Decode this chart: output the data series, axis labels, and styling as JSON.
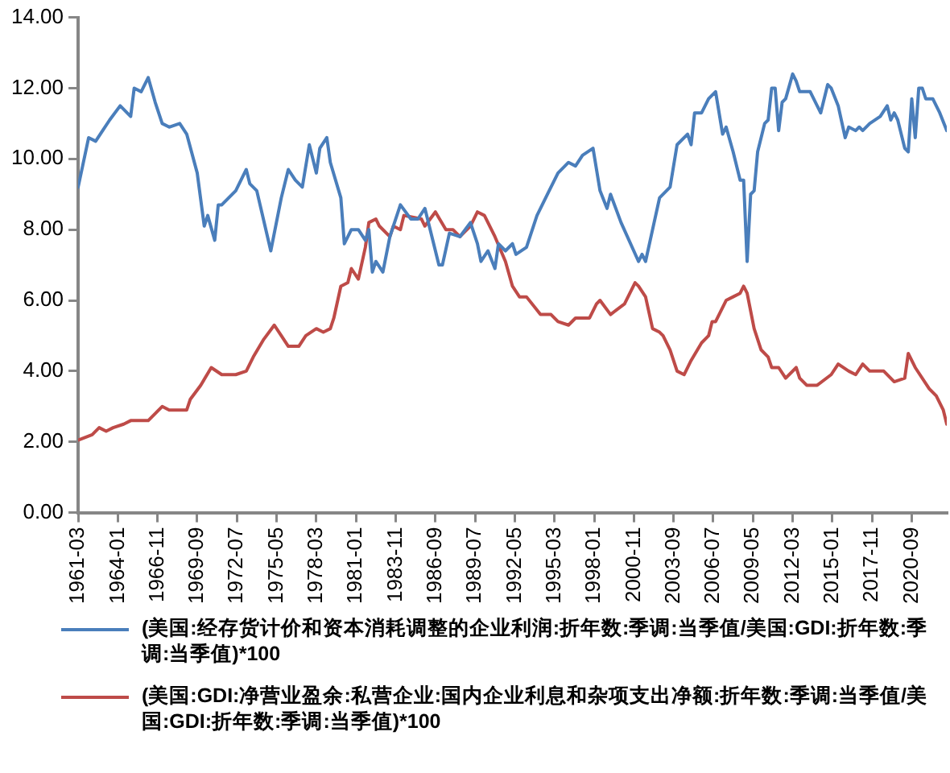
{
  "chart_data": {
    "type": "line",
    "xlim": [
      "1961-03",
      "2023-03"
    ],
    "xticks": [
      "1961-03",
      "1964-01",
      "1966-11",
      "1969-09",
      "1972-07",
      "1975-05",
      "1978-03",
      "1981-01",
      "1983-11",
      "1986-09",
      "1989-07",
      "1992-05",
      "1995-03",
      "1998-01",
      "2000-11",
      "2003-09",
      "2006-07",
      "2009-05",
      "2012-03",
      "2015-01",
      "2017-11",
      "2020-09"
    ],
    "ylim": [
      0,
      14
    ],
    "yticks": [
      {
        "value": 0,
        "label": "0.00"
      },
      {
        "value": 2,
        "label": "2.00"
      },
      {
        "value": 4,
        "label": "4.00"
      },
      {
        "value": 6,
        "label": "6.00"
      },
      {
        "value": 8,
        "label": "8.00"
      },
      {
        "value": 10,
        "label": "10.00"
      },
      {
        "value": 12,
        "label": "12.00"
      },
      {
        "value": 14,
        "label": "14.00"
      }
    ],
    "grid": false,
    "legend": "bottom",
    "marker": "none",
    "line_style": "solid",
    "series": [
      {
        "name": "(美国:经存货计价和资本消耗调整的企业利润:折年数:季调:当季值/美国:GDI:折年数:季调:当季值)*100",
        "color": "#4a7ebb",
        "x": [
          "1961-03",
          "1961-12",
          "1962-06",
          "1962-12",
          "1963-06",
          "1964-03",
          "1964-12",
          "1965-03",
          "1965-09",
          "1966-03",
          "1966-09",
          "1967-03",
          "1967-09",
          "1968-06",
          "1968-12",
          "1969-09",
          "1970-03",
          "1970-06",
          "1970-12",
          "1971-03",
          "1971-06",
          "1972-06",
          "1973-03",
          "1973-06",
          "1973-12",
          "1974-12",
          "1975-09",
          "1976-03",
          "1976-09",
          "1977-03",
          "1977-09",
          "1978-03",
          "1978-06",
          "1978-12",
          "1979-03",
          "1979-12",
          "1980-03",
          "1980-09",
          "1981-03",
          "1981-09",
          "1981-12",
          "1982-03",
          "1982-06",
          "1982-12",
          "1983-06",
          "1984-03",
          "1984-12",
          "1985-06",
          "1985-12",
          "1986-12",
          "1987-03",
          "1987-09",
          "1988-06",
          "1989-03",
          "1989-09",
          "1989-12",
          "1990-06",
          "1990-12",
          "1991-03",
          "1991-09",
          "1992-03",
          "1992-06",
          "1993-03",
          "1993-12",
          "1994-09",
          "1995-06",
          "1996-03",
          "1996-09",
          "1997-03",
          "1997-12",
          "1998-06",
          "1998-12",
          "1999-03",
          "1999-12",
          "2001-03",
          "2001-06",
          "2001-09",
          "2002-03",
          "2002-09",
          "2003-06",
          "2003-12",
          "2004-09",
          "2004-12",
          "2005-03",
          "2005-09",
          "2006-03",
          "2006-09",
          "2007-03",
          "2007-06",
          "2007-12",
          "2008-06",
          "2008-09",
          "2008-12",
          "2009-03",
          "2009-06",
          "2009-09",
          "2010-03",
          "2010-06",
          "2010-09",
          "2010-12",
          "2011-03",
          "2011-06",
          "2011-09",
          "2012-03",
          "2012-06",
          "2012-09",
          "2013-06",
          "2014-03",
          "2014-09",
          "2014-12",
          "2015-06",
          "2015-12",
          "2016-03",
          "2016-09",
          "2016-12",
          "2017-03",
          "2017-09",
          "2018-06",
          "2018-12",
          "2019-03",
          "2019-06",
          "2019-09",
          "2020-03",
          "2020-06",
          "2020-09",
          "2020-12",
          "2021-03",
          "2021-06",
          "2021-09",
          "2022-03",
          "2022-06",
          "2022-09",
          "2023-03"
        ],
        "values": [
          9.2,
          10.6,
          10.5,
          10.8,
          11.1,
          11.5,
          11.2,
          12.0,
          11.9,
          12.3,
          11.6,
          11.0,
          10.9,
          11.0,
          10.7,
          9.6,
          8.1,
          8.4,
          7.7,
          8.7,
          8.7,
          9.1,
          9.7,
          9.3,
          9.1,
          7.4,
          8.9,
          9.7,
          9.4,
          9.2,
          10.4,
          9.6,
          10.3,
          10.6,
          9.9,
          8.9,
          7.6,
          8.0,
          8.0,
          7.7,
          8.0,
          6.8,
          7.1,
          6.8,
          7.8,
          8.7,
          8.3,
          8.3,
          8.6,
          7.0,
          7.0,
          7.9,
          7.8,
          8.2,
          7.6,
          7.1,
          7.4,
          6.9,
          7.6,
          7.4,
          7.6,
          7.3,
          7.5,
          8.4,
          9.0,
          9.6,
          9.9,
          9.8,
          10.1,
          10.3,
          9.1,
          8.6,
          9.0,
          8.2,
          7.1,
          7.3,
          7.1,
          8.0,
          8.9,
          9.2,
          10.4,
          10.7,
          10.4,
          11.3,
          11.3,
          11.7,
          11.9,
          10.7,
          10.9,
          10.2,
          9.4,
          9.4,
          7.1,
          9.0,
          9.1,
          10.2,
          11.0,
          11.1,
          12.0,
          12.0,
          10.8,
          11.6,
          11.7,
          12.4,
          12.2,
          11.9,
          11.9,
          11.3,
          12.1,
          12.0,
          11.5,
          10.6,
          10.9,
          10.8,
          10.9,
          10.8,
          11.0,
          11.2,
          11.5,
          11.1,
          11.3,
          11.1,
          10.3,
          10.2,
          11.7,
          10.6,
          12.0,
          12.0,
          11.7,
          11.7,
          11.5,
          11.3,
          10.8
        ]
      },
      {
        "name": "(美国:GDI:净营业盈余:私营企业:国内企业利息和杂项支出净额:折年数:季调:当季值/美国:GDI:折年数:季调:当季值)*100",
        "color": "#be4b48",
        "x": [
          "1961-03",
          "1962-03",
          "1962-09",
          "1963-03",
          "1963-09",
          "1964-06",
          "1964-12",
          "1966-03",
          "1966-09",
          "1967-03",
          "1967-09",
          "1968-12",
          "1969-03",
          "1969-12",
          "1970-09",
          "1971-06",
          "1972-06",
          "1973-03",
          "1973-09",
          "1974-06",
          "1975-03",
          "1975-09",
          "1976-03",
          "1976-12",
          "1977-06",
          "1978-03",
          "1978-09",
          "1979-03",
          "1979-06",
          "1979-12",
          "1980-06",
          "1980-09",
          "1981-03",
          "1981-09",
          "1981-12",
          "1982-06",
          "1982-09",
          "1983-06",
          "1983-09",
          "1984-03",
          "1984-06",
          "1985-09",
          "1985-12",
          "1986-09",
          "1987-06",
          "1987-12",
          "1988-06",
          "1989-03",
          "1989-09",
          "1990-03",
          "1990-09",
          "1990-12",
          "1991-09",
          "1992-03",
          "1992-09",
          "1993-03",
          "1994-03",
          "1994-12",
          "1995-06",
          "1996-03",
          "1996-09",
          "1997-09",
          "1998-03",
          "1998-06",
          "1999-03",
          "2000-03",
          "2000-12",
          "2001-03",
          "2001-09",
          "2002-03",
          "2002-09",
          "2002-12",
          "2003-06",
          "2003-12",
          "2004-06",
          "2004-12",
          "2005-09",
          "2006-03",
          "2006-06",
          "2006-09",
          "2007-06",
          "2007-12",
          "2008-06",
          "2008-09",
          "2008-12",
          "2009-06",
          "2009-12",
          "2010-06",
          "2010-09",
          "2011-03",
          "2011-09",
          "2012-06",
          "2012-09",
          "2013-03",
          "2013-12",
          "2014-12",
          "2015-06",
          "2016-03",
          "2016-09",
          "2017-03",
          "2017-09",
          "2018-09",
          "2019-06",
          "2020-03",
          "2020-06",
          "2020-12",
          "2021-12",
          "2022-06",
          "2022-12",
          "2023-03"
        ],
        "values": [
          2.05,
          2.2,
          2.4,
          2.3,
          2.4,
          2.5,
          2.6,
          2.6,
          2.8,
          3.0,
          2.9,
          2.9,
          3.2,
          3.6,
          4.1,
          3.9,
          3.9,
          4.0,
          4.4,
          4.9,
          5.3,
          5.0,
          4.7,
          4.7,
          5.0,
          5.2,
          5.1,
          5.2,
          5.5,
          6.4,
          6.5,
          6.9,
          6.6,
          7.5,
          8.2,
          8.3,
          8.1,
          7.8,
          8.1,
          8.0,
          8.4,
          8.3,
          8.1,
          8.5,
          8.0,
          8.0,
          7.8,
          8.1,
          8.5,
          8.4,
          8.0,
          7.8,
          7.1,
          6.4,
          6.1,
          6.1,
          5.6,
          5.6,
          5.4,
          5.3,
          5.5,
          5.5,
          5.9,
          6.0,
          5.6,
          5.9,
          6.5,
          6.4,
          6.1,
          5.2,
          5.1,
          5.0,
          4.6,
          4.0,
          3.9,
          4.3,
          4.8,
          5.0,
          5.4,
          5.4,
          6.0,
          6.1,
          6.2,
          6.4,
          6.2,
          5.2,
          4.6,
          4.4,
          4.1,
          4.1,
          3.8,
          4.1,
          3.8,
          3.6,
          3.6,
          3.9,
          4.2,
          4.0,
          3.9,
          4.2,
          4.0,
          4.0,
          3.7,
          3.8,
          4.5,
          4.1,
          3.5,
          3.3,
          2.9,
          2.5
        ]
      }
    ]
  }
}
